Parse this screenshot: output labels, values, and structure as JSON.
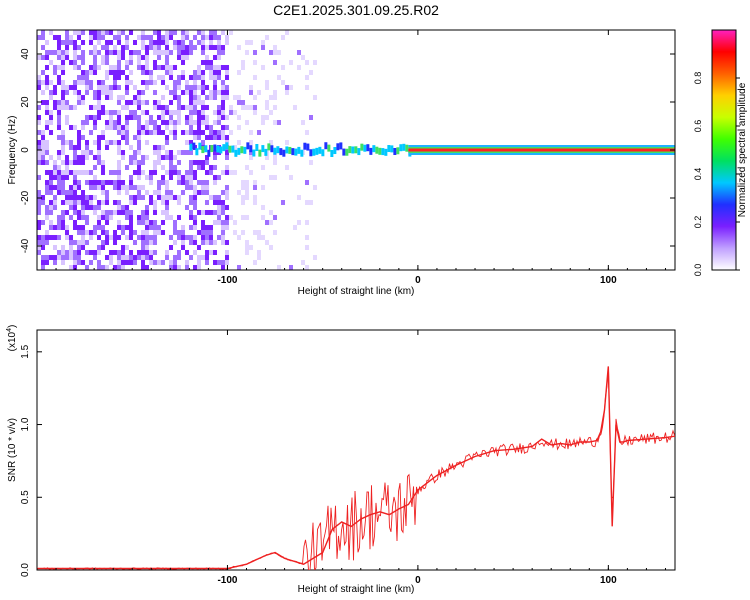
{
  "title": "C2E1.2025.301.09.25.R02",
  "chart_data": [
    {
      "type": "heatmap",
      "name": "spectrogram",
      "xlabel": "Height of straight line (km)",
      "ylabel": "Frequency (Hz)",
      "xlim": [
        -200,
        135
      ],
      "ylim": [
        -50,
        50
      ],
      "x_ticks": [
        -100,
        0,
        100
      ],
      "x_tick_labels": [
        "-100",
        "0",
        "100"
      ],
      "y_ticks": [
        -40,
        -20,
        0,
        20,
        40
      ],
      "y_tick_labels": [
        "-40",
        "-20",
        "0",
        "20",
        "40"
      ],
      "colorbar": {
        "label": "Normalized spectral amplitude",
        "range": [
          0,
          1
        ],
        "ticks": [
          0.0,
          0.2,
          0.4,
          0.6,
          0.8
        ],
        "tick_labels": [
          "0.0",
          "0.2",
          "0.4",
          "0.6",
          "0.8"
        ],
        "colors": [
          "#ffffff",
          "#c0a0ff",
          "#7a1fff",
          "#2030ff",
          "#00c8ff",
          "#00e060",
          "#40ff00",
          "#c8ff00",
          "#ffd000",
          "#ff6000",
          "#ff0000",
          "#ff20c0"
        ]
      },
      "main_line": {
        "frequency_hz": 0,
        "segments": [
          {
            "x_start": -120,
            "x_end": -5,
            "level": 0.3,
            "note": "noisy, wandering tone"
          },
          {
            "x_start": -5,
            "x_end": 135,
            "level": 0.9,
            "note": "strong steady tone"
          }
        ]
      }
    },
    {
      "type": "line",
      "name": "snr",
      "xlabel": "Height of straight line (km)",
      "ylabel": "SNR (10 * v/v)",
      "multiplier_label": "(x10",
      "multiplier_exp": "4",
      "multiplier_close": ")",
      "xlim": [
        -200,
        135
      ],
      "ylim": [
        0,
        1.65
      ],
      "x_ticks": [
        -100,
        0,
        100
      ],
      "x_tick_labels": [
        "-100",
        "0",
        "100"
      ],
      "y_ticks": [
        0.0,
        0.5,
        1.0,
        1.5
      ],
      "y_tick_labels": [
        "0.0",
        "0.5",
        "1.0",
        "1.5"
      ],
      "color": "#ee2222",
      "series": [
        {
          "name": "SNR",
          "x": [
            -200,
            -180,
            -160,
            -140,
            -120,
            -100,
            -90,
            -80,
            -75,
            -70,
            -60,
            -55,
            -50,
            -45,
            -40,
            -35,
            -30,
            -25,
            -20,
            -15,
            -10,
            -5,
            0,
            5,
            10,
            20,
            30,
            40,
            50,
            60,
            65,
            70,
            75,
            80,
            85,
            90,
            94,
            96,
            98,
            100,
            102,
            104,
            106,
            108,
            110,
            120,
            130,
            135
          ],
          "y": [
            0.01,
            0.01,
            0.01,
            0.01,
            0.01,
            0.01,
            0.04,
            0.1,
            0.12,
            0.08,
            0.04,
            0.08,
            0.12,
            0.28,
            0.33,
            0.3,
            0.35,
            0.38,
            0.4,
            0.38,
            0.42,
            0.45,
            0.55,
            0.6,
            0.65,
            0.72,
            0.78,
            0.82,
            0.83,
            0.85,
            0.9,
            0.86,
            0.87,
            0.86,
            0.88,
            0.88,
            0.89,
            0.95,
            1.1,
            1.4,
            0.3,
            1.0,
            0.88,
            0.88,
            0.89,
            0.9,
            0.91,
            0.92
          ]
        }
      ]
    }
  ]
}
